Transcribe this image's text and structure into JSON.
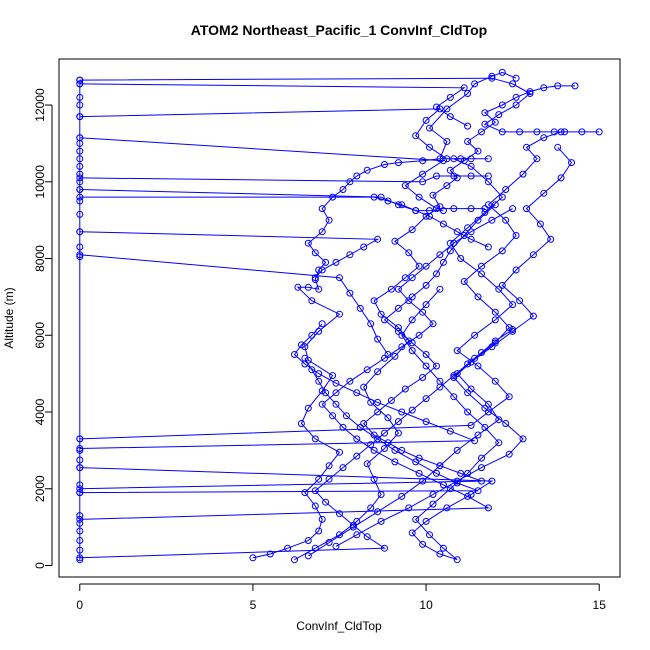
{
  "chart_data": {
    "type": "scatter",
    "title": "ATOM2 Northeast_Pacific_1 ConvInf_CldTop",
    "xlabel": "ConvInf_CldTop",
    "ylabel": "Altitude (m)",
    "xlim": [
      -0.6,
      15.6
    ],
    "ylim": [
      -300,
      13200
    ],
    "xticks": [
      0,
      5,
      10,
      15
    ],
    "yticks": [
      0,
      2000,
      4000,
      6000,
      8000,
      10000,
      12000
    ],
    "xtick_labels": [
      "0",
      "5",
      "10",
      "15"
    ],
    "ytick_labels": [
      "0",
      "2000",
      "4000",
      "6000",
      "8000",
      "10000",
      "12000"
    ],
    "style": "points connected by lines (type='o')",
    "grid": false,
    "legend": "none",
    "series_color": "#0000ff",
    "series": [
      {
        "x": [
          5.0,
          5.5,
          6.0,
          6.6,
          6.9,
          7.0,
          6.8,
          6.5,
          6.9,
          7.2,
          7.5,
          6.8,
          6.4,
          6.6,
          7.0,
          7.3,
          6.6,
          6.5,
          6.9,
          7.5,
          6.7,
          6.3,
          6.6,
          6.9,
          6.8,
          6.9,
          7.1,
          6.8,
          6.6,
          7.0,
          7.2,
          7.0,
          7.3,
          7.6,
          7.8,
          8.0,
          8.3,
          8.8,
          9.2,
          9.9,
          10.4,
          10.6,
          10.1,
          10.6,
          11.2,
          11.4,
          11.9,
          12.2,
          12.6
        ],
        "y": [
          200,
          300,
          450,
          650,
          900,
          1200,
          1550,
          1900,
          2250,
          2600,
          2950,
          3300,
          3700,
          4100,
          4550,
          4950,
          5350,
          5700,
          6100,
          6550,
          6900,
          7250,
          7250,
          7200,
          7450,
          7700,
          7900,
          8150,
          8400,
          8700,
          9000,
          9300,
          9600,
          9800,
          10000,
          10150,
          10300,
          10450,
          10500,
          10550,
          10600,
          11050,
          11400,
          11900,
          12300,
          12550,
          12750,
          12850,
          12700
        ]
      },
      {
        "x": [
          6.2,
          6.8,
          7.5,
          8.0,
          8.4,
          8.7,
          8.5,
          8.3,
          8.8,
          9.2,
          8.9,
          8.4,
          8.2,
          8.6,
          9.1,
          9.5,
          9.2,
          8.7,
          8.5,
          9.0,
          9.4,
          9.8,
          9.5,
          9.1,
          9.6,
          10.0,
          10.4,
          10.2,
          10.6,
          10.9,
          10.7,
          11.1,
          11.5,
          11.2,
          11.6,
          12.0,
          11.7,
          12.2,
          12.6,
          13.0,
          13.4,
          13.8,
          14.3
        ],
        "y": [
          150,
          450,
          800,
          1150,
          1500,
          1850,
          2250,
          2650,
          3050,
          3450,
          3850,
          4250,
          4650,
          5050,
          5450,
          5850,
          6200,
          6550,
          6900,
          7200,
          7500,
          7800,
          8150,
          8450,
          8750,
          9100,
          9350,
          9650,
          9900,
          10100,
          10300,
          10550,
          10800,
          11050,
          11300,
          11550,
          11800,
          12000,
          12200,
          12350,
          12450,
          12500,
          12500
        ]
      },
      {
        "x": [
          6.6,
          7.2,
          7.9,
          8.6,
          9.3,
          9.9,
          10.4,
          10.9,
          11.5,
          12.1,
          11.8,
          11.3,
          10.9,
          11.4,
          12.0,
          12.4,
          12.0,
          11.5,
          11.1,
          11.6,
          12.2,
          12.6,
          12.3,
          11.8,
          12.3,
          12.8,
          13.2,
          12.9,
          13.4,
          13.9,
          14.5,
          15.0
        ],
        "y": [
          250,
          600,
          1000,
          1400,
          1800,
          2200,
          2600,
          3000,
          3400,
          3800,
          4200,
          4600,
          5000,
          5400,
          5800,
          6200,
          6600,
          7000,
          7400,
          7800,
          8200,
          8600,
          9000,
          9400,
          9800,
          10200,
          10600,
          10900,
          11150,
          11300,
          11300,
          11300
        ]
      },
      {
        "x": [
          7.4,
          8.0,
          8.7,
          9.5,
          10.2,
          10.9,
          11.6,
          12.4,
          12.8,
          12.3,
          11.7,
          11.2,
          10.8,
          11.3,
          11.9,
          12.5,
          13.1,
          12.7,
          12.2,
          12.6,
          13.1,
          13.6,
          13.3,
          12.9,
          13.4,
          13.9,
          14.2,
          13.8
        ],
        "y": [
          500,
          800,
          1150,
          1500,
          1850,
          2200,
          2550,
          2900,
          3300,
          3700,
          4100,
          4500,
          4900,
          5300,
          5700,
          6100,
          6500,
          6900,
          7300,
          7700,
          8100,
          8500,
          8900,
          9300,
          9700,
          10100,
          10500,
          10900
        ]
      },
      {
        "x": [
          0,
          11.3,
          11.8,
          12.4,
          12.0,
          11.5,
          10.9,
          11.4,
          12.0,
          12.5,
          12.1,
          11.6,
          11.0,
          10.7,
          11.2,
          11.7,
          12.2,
          11.8,
          11.3,
          10.8,
          11.3,
          11.8
        ],
        "y": [
          3300,
          3650,
          4000,
          4400,
          4800,
          5200,
          5600,
          6000,
          6400,
          6800,
          7200,
          7600,
          8000,
          8400,
          8800,
          9200,
          9600,
          10000,
          10400,
          10600,
          10600,
          10600
        ]
      },
      {
        "x": [
          0,
          11.9,
          11.3,
          10.6,
          10.0,
          9.6,
          9.9,
          10.4,
          10.9,
          10.5,
          10.1,
          9.7,
          10.2,
          10.7,
          11.2,
          11.6,
          12.1,
          11.7,
          11.2,
          10.8,
          10.4,
          10.0,
          9.6,
          9.3,
          9.6,
          10.0,
          10.4
        ],
        "y": [
          2550,
          2200,
          1850,
          1500,
          1150,
          850,
          550,
          300,
          150,
          450,
          800,
          1200,
          1600,
          2000,
          2400,
          2800,
          3200,
          3600,
          4000,
          4400,
          4800,
          5200,
          5600,
          6000,
          6400,
          6800,
          7200
        ]
      },
      {
        "x": [
          0,
          11.6,
          11.0,
          10.4,
          9.8,
          9.3,
          8.9,
          8.5,
          8.2,
          8.6,
          9.0,
          9.4,
          9.9,
          10.3,
          10.0,
          9.6,
          9.2,
          8.8,
          9.2,
          9.6,
          10.0,
          10.3,
          10.5,
          10.7,
          11.1,
          11.5,
          12.0
        ],
        "y": [
          2000,
          2200,
          2400,
          2600,
          2800,
          3000,
          3200,
          3400,
          3700,
          4000,
          4300,
          4600,
          4900,
          5200,
          5500,
          5800,
          6100,
          6400,
          6700,
          7000,
          7300,
          7600,
          7900,
          8200,
          8600,
          9000,
          9400
        ]
      },
      {
        "x": [
          0,
          11.8,
          11.2,
          10.5,
          9.8,
          9.1,
          8.5,
          8.0,
          7.6,
          7.3,
          7.0,
          7.4,
          7.8,
          8.3,
          8.8,
          9.3,
          9.8,
          10.2,
          9.9,
          9.5,
          9.2,
          9.6,
          10.0,
          10.4,
          10.8,
          11.3,
          11.9,
          12.5
        ],
        "y": [
          1200,
          1500,
          1800,
          2100,
          2400,
          2700,
          3000,
          3300,
          3600,
          3900,
          4200,
          4500,
          4800,
          5100,
          5400,
          5700,
          6000,
          6300,
          6600,
          6900,
          7200,
          7500,
          7800,
          8100,
          8400,
          8700,
          9000,
          9300
        ]
      },
      {
        "x": [
          0,
          8.8,
          8.3,
          7.9,
          7.5,
          7.1,
          6.8,
          7.2,
          7.6,
          8.0,
          8.4,
          8.8,
          9.2,
          9.6,
          10.0,
          10.4,
          10.8,
          11.2,
          11.6,
          12.0,
          12.5
        ],
        "y": [
          200,
          450,
          750,
          1050,
          1350,
          1650,
          1950,
          2250,
          2550,
          2850,
          3150,
          3450,
          3750,
          4050,
          4350,
          4650,
          4950,
          5250,
          5550,
          5850,
          6150
        ]
      },
      {
        "x": [
          0,
          11.9,
          12.5,
          13.0,
          12.6,
          12.1,
          11.7,
          12.2,
          12.7,
          13.2,
          13.7,
          14.0
        ],
        "y": [
          12650,
          12700,
          12550,
          12300,
          12000,
          11750,
          11500,
          11300,
          11300,
          11300,
          11300,
          11300
        ]
      },
      {
        "x": [
          0,
          11.1,
          10.7,
          10.3,
          10.7,
          11.2
        ],
        "y": [
          12550,
          12450,
          12200,
          11950,
          11700,
          11450
        ]
      },
      {
        "x": [
          0,
          10.4,
          10.0,
          9.7,
          10.1,
          10.6,
          11.0
        ],
        "y": [
          11700,
          11900,
          11600,
          11200,
          10900,
          10600,
          10600
        ]
      },
      {
        "x": [
          0,
          10.5,
          9.9,
          9.4,
          9.8,
          10.3,
          10.8,
          11.3,
          11.7
        ],
        "y": [
          11150,
          10550,
          10200,
          9900,
          9600,
          9300,
          9300,
          9300,
          9300
        ]
      },
      {
        "x": [
          0,
          9.9,
          10.3,
          10.8,
          11.3,
          11.8
        ],
        "y": [
          10100,
          10000,
          10150,
          10150,
          10150,
          10150
        ]
      },
      {
        "x": [
          0,
          8.7,
          9.2,
          9.7,
          10.1,
          10.5
        ],
        "y": [
          9800,
          9600,
          9400,
          9250,
          9250,
          9250
        ]
      },
      {
        "x": [
          0,
          8.5,
          8.9,
          9.3,
          9.7,
          10.1,
          10.5,
          10.9,
          11.3,
          11.8
        ],
        "y": [
          9600,
          9600,
          9500,
          9400,
          9250,
          9100,
          8900,
          8700,
          8500,
          8300
        ]
      },
      {
        "x": [
          0,
          8.6,
          8.2,
          7.8,
          7.4,
          7.0,
          6.8
        ],
        "y": [
          8700,
          8500,
          8300,
          8100,
          7900,
          7700,
          7500
        ]
      },
      {
        "x": [
          0,
          7.5,
          7.8,
          8.1,
          8.4,
          8.6,
          8.9
        ],
        "y": [
          8100,
          7500,
          7100,
          6700,
          6300,
          5900,
          5500
        ]
      },
      {
        "x": [
          0,
          11.5,
          10.9,
          10.3,
          9.7,
          9.1,
          8.6,
          8.1,
          7.7,
          7.4,
          7.1,
          6.9,
          6.7,
          6.5
        ],
        "y": [
          1900,
          1950,
          2150,
          2400,
          2700,
          3000,
          3300,
          3600,
          3900,
          4200,
          4500,
          4800,
          5100,
          5400
        ]
      },
      {
        "x": [
          0,
          11.4,
          10.7,
          10.0,
          9.3,
          8.6,
          8.0,
          7.4,
          6.9,
          6.5,
          6.2,
          6.4,
          6.7,
          7.0
        ],
        "y": [
          3050,
          3250,
          3500,
          3750,
          4000,
          4250,
          4500,
          4750,
          5000,
          5250,
          5500,
          5750,
          6000,
          6300
        ]
      },
      {
        "x": [
          0,
          0,
          0,
          0,
          0,
          0,
          0,
          0,
          0,
          0,
          0,
          0,
          0,
          0,
          0,
          0,
          0,
          0,
          0,
          0,
          0,
          0,
          0,
          0,
          0,
          0,
          0,
          0,
          0,
          0
        ],
        "y": [
          150,
          400,
          650,
          900,
          1100,
          1300,
          1900,
          2100,
          2550,
          2750,
          3000,
          3300,
          8050,
          8300,
          8700,
          9150,
          9500,
          9800,
          10000,
          10200,
          10400,
          10600,
          10800,
          11000,
          11150,
          11700,
          12000,
          12200,
          12550,
          12650
        ]
      }
    ]
  }
}
